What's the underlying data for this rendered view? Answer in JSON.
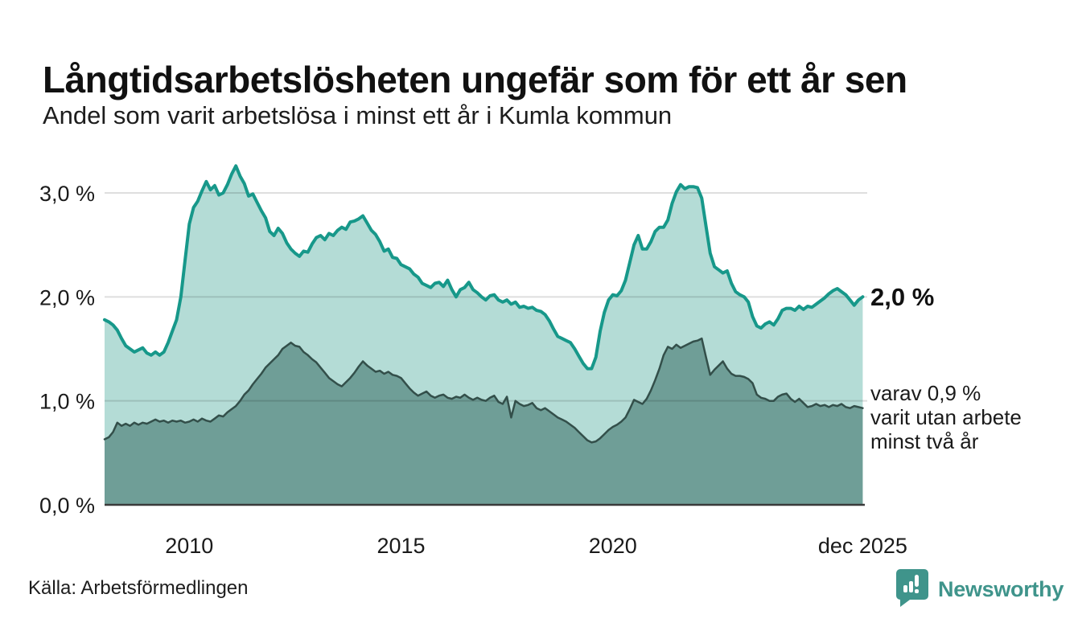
{
  "header": {
    "title": "Långtidsarbetslösheten ungefär som för ett år sen",
    "subtitle": "Andel som varit arbetslösa i minst ett år i Kumla kommun"
  },
  "chart_data": {
    "type": "area",
    "title": "Långtidsarbetslösheten ungefär som för ett år sen",
    "subtitle": "Andel som varit arbetslösa i minst ett år i Kumla kommun",
    "x_domain": [
      2008.0,
      2025.95
    ],
    "x_start": 2008.0,
    "x_step": 0.1,
    "ylim": [
      0,
      3.31
    ],
    "grid": true,
    "y_ticks": [
      {
        "v": 0,
        "label": "0,0 %"
      },
      {
        "v": 1,
        "label": "1,0 %"
      },
      {
        "v": 2,
        "label": "2,0 %"
      },
      {
        "v": 3,
        "label": "3,0 %"
      }
    ],
    "x_ticks": [
      {
        "x": 2010,
        "label": "2010"
      },
      {
        "x": 2015,
        "label": "2015"
      },
      {
        "x": 2020,
        "label": "2020"
      },
      {
        "x": 2025.9,
        "label": "dec 2025"
      }
    ],
    "series": [
      {
        "name": "Andel som varit arbetslösa minst ett år",
        "line_color": "#17988a",
        "fill_color": "#b4dcd6",
        "line_width": 4,
        "values": [
          1.78,
          1.76,
          1.73,
          1.68,
          1.6,
          1.53,
          1.5,
          1.47,
          1.49,
          1.51,
          1.46,
          1.44,
          1.47,
          1.44,
          1.47,
          1.56,
          1.67,
          1.78,
          2.0,
          2.35,
          2.7,
          2.86,
          2.92,
          3.02,
          3.11,
          3.03,
          3.07,
          2.98,
          3.0,
          3.08,
          3.18,
          3.26,
          3.16,
          3.09,
          2.97,
          2.99,
          2.91,
          2.83,
          2.76,
          2.63,
          2.59,
          2.66,
          2.61,
          2.52,
          2.46,
          2.42,
          2.39,
          2.44,
          2.43,
          2.51,
          2.57,
          2.59,
          2.55,
          2.61,
          2.59,
          2.64,
          2.67,
          2.65,
          2.72,
          2.73,
          2.75,
          2.78,
          2.71,
          2.64,
          2.6,
          2.53,
          2.44,
          2.46,
          2.38,
          2.37,
          2.31,
          2.29,
          2.27,
          2.22,
          2.19,
          2.13,
          2.11,
          2.09,
          2.13,
          2.14,
          2.1,
          2.16,
          2.07,
          2.0,
          2.07,
          2.09,
          2.14,
          2.07,
          2.04,
          2.0,
          1.97,
          2.01,
          2.02,
          1.97,
          1.95,
          1.97,
          1.93,
          1.95,
          1.9,
          1.91,
          1.89,
          1.9,
          1.87,
          1.86,
          1.83,
          1.77,
          1.69,
          1.62,
          1.6,
          1.58,
          1.56,
          1.5,
          1.43,
          1.36,
          1.31,
          1.31,
          1.42,
          1.67,
          1.85,
          1.97,
          2.02,
          2.01,
          2.06,
          2.16,
          2.33,
          2.5,
          2.59,
          2.46,
          2.46,
          2.53,
          2.63,
          2.67,
          2.67,
          2.74,
          2.9,
          3.01,
          3.08,
          3.04,
          3.06,
          3.06,
          3.05,
          2.95,
          2.68,
          2.42,
          2.29,
          2.26,
          2.23,
          2.25,
          2.13,
          2.05,
          2.02,
          2.0,
          1.95,
          1.81,
          1.72,
          1.7,
          1.74,
          1.76,
          1.73,
          1.79,
          1.87,
          1.89,
          1.89,
          1.87,
          1.91,
          1.88,
          1.91,
          1.9,
          1.93,
          1.96,
          1.99,
          2.03,
          2.06,
          2.08,
          2.05,
          2.02,
          1.97,
          1.92,
          1.97,
          2.0
        ]
      },
      {
        "name": "varav utan arbete minst två år",
        "line_color": "#334f4a",
        "fill_color": "#6f9e97",
        "line_width": 2.5,
        "values": [
          0.63,
          0.65,
          0.7,
          0.79,
          0.76,
          0.78,
          0.76,
          0.79,
          0.77,
          0.79,
          0.78,
          0.8,
          0.82,
          0.8,
          0.81,
          0.79,
          0.81,
          0.8,
          0.81,
          0.79,
          0.8,
          0.82,
          0.8,
          0.83,
          0.81,
          0.8,
          0.83,
          0.86,
          0.85,
          0.89,
          0.92,
          0.95,
          1.0,
          1.06,
          1.1,
          1.16,
          1.21,
          1.26,
          1.32,
          1.36,
          1.4,
          1.44,
          1.5,
          1.53,
          1.56,
          1.53,
          1.52,
          1.47,
          1.44,
          1.4,
          1.37,
          1.32,
          1.27,
          1.22,
          1.19,
          1.16,
          1.14,
          1.18,
          1.22,
          1.27,
          1.33,
          1.38,
          1.34,
          1.31,
          1.28,
          1.29,
          1.26,
          1.28,
          1.25,
          1.24,
          1.22,
          1.17,
          1.12,
          1.08,
          1.05,
          1.07,
          1.09,
          1.05,
          1.03,
          1.05,
          1.06,
          1.03,
          1.02,
          1.04,
          1.03,
          1.06,
          1.03,
          1.01,
          1.03,
          1.01,
          1.0,
          1.03,
          1.05,
          0.99,
          0.97,
          1.04,
          0.84,
          1.0,
          0.97,
          0.95,
          0.96,
          0.98,
          0.93,
          0.91,
          0.93,
          0.9,
          0.87,
          0.84,
          0.82,
          0.8,
          0.77,
          0.74,
          0.7,
          0.66,
          0.62,
          0.6,
          0.61,
          0.64,
          0.68,
          0.72,
          0.75,
          0.77,
          0.8,
          0.84,
          0.92,
          1.01,
          0.99,
          0.97,
          1.02,
          1.1,
          1.2,
          1.31,
          1.44,
          1.52,
          1.5,
          1.54,
          1.51,
          1.53,
          1.55,
          1.57,
          1.58,
          1.6,
          1.42,
          1.25,
          1.3,
          1.34,
          1.38,
          1.31,
          1.26,
          1.24,
          1.24,
          1.23,
          1.21,
          1.17,
          1.06,
          1.03,
          1.02,
          1.0,
          1.0,
          1.04,
          1.06,
          1.07,
          1.02,
          0.99,
          1.02,
          0.98,
          0.94,
          0.95,
          0.97,
          0.95,
          0.96,
          0.94,
          0.96,
          0.95,
          0.97,
          0.94,
          0.93,
          0.95,
          0.94,
          0.93
        ]
      }
    ],
    "end_labels": {
      "primary": "2,0 %",
      "secondary_lines": [
        "varav 0,9 %",
        "varit utan arbete",
        "minst två år"
      ]
    },
    "colors": {
      "gridline": "rgba(0,0,0,0.13)",
      "axis_line": "#3a3a3a",
      "tick_text": "#1a1a1a"
    }
  },
  "footer": {
    "source": "Källa: Arbetsförmedlingen",
    "brand": "Newsworthy",
    "brand_color": "#3f948b"
  }
}
